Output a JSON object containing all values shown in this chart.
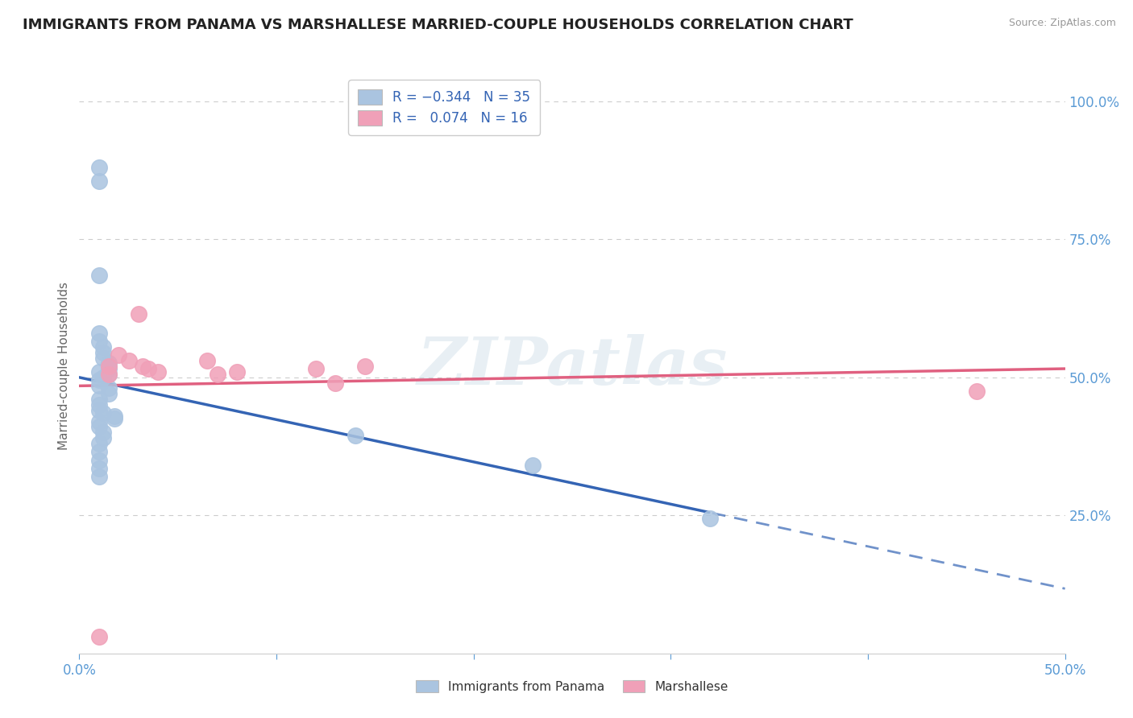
{
  "title": "IMMIGRANTS FROM PANAMA VS MARSHALLESE MARRIED-COUPLE HOUSEHOLDS CORRELATION CHART",
  "source": "Source: ZipAtlas.com",
  "ylabel": "Married-couple Households",
  "legend_label1": "Immigrants from Panama",
  "legend_label2": "Marshallese",
  "watermark": "ZIPatlas",
  "xlim": [
    0.0,
    0.5
  ],
  "ylim": [
    0.0,
    1.0
  ],
  "scatter_panama": [
    [
      0.01,
      0.88
    ],
    [
      0.01,
      0.855
    ],
    [
      0.01,
      0.685
    ],
    [
      0.01,
      0.58
    ],
    [
      0.01,
      0.565
    ],
    [
      0.012,
      0.555
    ],
    [
      0.012,
      0.545
    ],
    [
      0.012,
      0.535
    ],
    [
      0.015,
      0.525
    ],
    [
      0.015,
      0.515
    ],
    [
      0.01,
      0.51
    ],
    [
      0.015,
      0.505
    ],
    [
      0.012,
      0.5
    ],
    [
      0.01,
      0.495
    ],
    [
      0.01,
      0.485
    ],
    [
      0.015,
      0.48
    ],
    [
      0.015,
      0.47
    ],
    [
      0.01,
      0.46
    ],
    [
      0.01,
      0.45
    ],
    [
      0.01,
      0.44
    ],
    [
      0.012,
      0.435
    ],
    [
      0.018,
      0.43
    ],
    [
      0.018,
      0.425
    ],
    [
      0.01,
      0.42
    ],
    [
      0.01,
      0.41
    ],
    [
      0.012,
      0.4
    ],
    [
      0.012,
      0.39
    ],
    [
      0.01,
      0.38
    ],
    [
      0.01,
      0.365
    ],
    [
      0.01,
      0.35
    ],
    [
      0.01,
      0.335
    ],
    [
      0.01,
      0.32
    ],
    [
      0.14,
      0.395
    ],
    [
      0.23,
      0.34
    ],
    [
      0.32,
      0.245
    ]
  ],
  "scatter_marshallese": [
    [
      0.01,
      0.03
    ],
    [
      0.015,
      0.52
    ],
    [
      0.015,
      0.505
    ],
    [
      0.02,
      0.54
    ],
    [
      0.025,
      0.53
    ],
    [
      0.03,
      0.615
    ],
    [
      0.032,
      0.52
    ],
    [
      0.035,
      0.515
    ],
    [
      0.04,
      0.51
    ],
    [
      0.065,
      0.53
    ],
    [
      0.07,
      0.505
    ],
    [
      0.08,
      0.51
    ],
    [
      0.12,
      0.515
    ],
    [
      0.13,
      0.49
    ],
    [
      0.145,
      0.52
    ],
    [
      0.455,
      0.475
    ]
  ],
  "blue_color": "#aac4e0",
  "pink_color": "#f0a0b8",
  "blue_line_color": "#3464b4",
  "pink_line_color": "#e06080",
  "axis_color": "#5b9bd5",
  "grid_color": "#cccccc",
  "title_fontsize": 13,
  "source_fontsize": 9,
  "tick_fontsize": 12
}
